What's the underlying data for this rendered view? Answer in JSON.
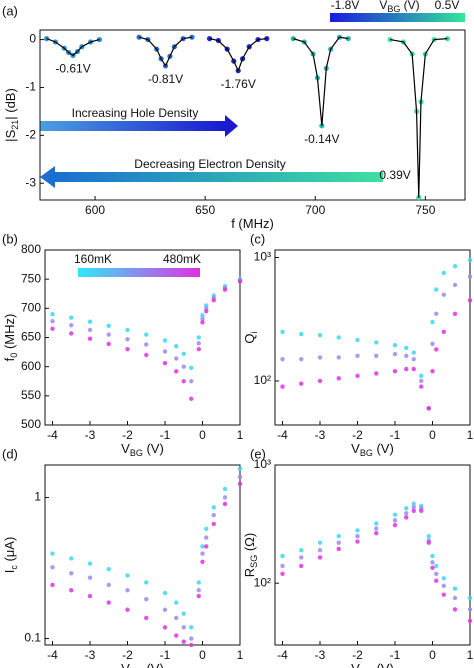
{
  "chart_data": [
    {
      "type": "line",
      "panel": "(a)",
      "xlabel": [
        "f (MHz)"
      ],
      "ylabel": [
        "|S",
        "21",
        "| (dB)"
      ],
      "xlim": [
        575,
        768
      ],
      "xticks": [
        600,
        650,
        700,
        750
      ],
      "ylim": [
        -3.35,
        0.2
      ],
      "yticks": [
        -3,
        -2,
        -1,
        0
      ],
      "fit_color": "#000000",
      "series": [
        {
          "name": "-0.61V",
          "color": "#2f8fd0",
          "x": [
            578,
            582,
            586,
            588,
            590,
            592,
            594,
            598,
            602
          ],
          "values": [
            0.02,
            -0.05,
            -0.18,
            -0.27,
            -0.33,
            -0.25,
            -0.15,
            -0.05,
            0.0
          ]
        },
        {
          "name": "-0.81V",
          "color": "#2a6fd0",
          "x": [
            620,
            624,
            628,
            630,
            632,
            634,
            636,
            640,
            644
          ],
          "values": [
            0.05,
            0.0,
            -0.2,
            -0.4,
            -0.55,
            -0.35,
            -0.15,
            0.02,
            0.05
          ]
        },
        {
          "name": "-1.76V",
          "color": "#1a2ad0",
          "x": [
            652,
            656,
            660,
            663,
            665,
            667,
            670,
            674,
            678
          ],
          "values": [
            0.02,
            -0.02,
            -0.2,
            -0.45,
            -0.65,
            -0.4,
            -0.15,
            0.0,
            0.02
          ]
        },
        {
          "name": "-0.14V",
          "color": "#2ab8a8",
          "x": [
            690,
            695,
            699,
            701,
            703,
            705,
            707,
            711,
            715
          ],
          "values": [
            0.02,
            -0.05,
            -0.3,
            -0.8,
            -1.8,
            -0.6,
            -0.2,
            0.05,
            0.02
          ]
        },
        {
          "name": "0.39V",
          "color": "#3ee0a0",
          "x": [
            734,
            740,
            744,
            746,
            747,
            748,
            750,
            754,
            760
          ],
          "values": [
            0.0,
            -0.05,
            -0.3,
            -1.5,
            -3.3,
            -1.3,
            -0.3,
            0.0,
            0.02
          ]
        }
      ],
      "annotations": [
        "Increasing Hole Density",
        "Decreasing Electron Density"
      ],
      "colorbar": {
        "colors": [
          "#1a1adf",
          "#33e699"
        ],
        "labels": [
          "-1.8V",
          "0.5V"
        ],
        "title": [
          "V",
          "BG",
          " (V)"
        ]
      }
    },
    {
      "type": "scatter",
      "panel": "(b)",
      "xlabel": [
        "V",
        "BG",
        " (V)"
      ],
      "ylabel": [
        "f",
        "0",
        " (MHz)"
      ],
      "xlim": [
        -4.2,
        1
      ],
      "xticks": [
        -4,
        -3,
        -2,
        -1,
        0,
        1
      ],
      "ylim": [
        500,
        800
      ],
      "yticks": [
        500,
        550,
        600,
        650,
        700,
        750,
        800
      ],
      "x": [
        -4,
        -3.5,
        -3,
        -2.5,
        -2,
        -1.5,
        -1,
        -0.7,
        -0.5,
        -0.3,
        -0.1,
        0,
        0.1,
        0.3,
        0.6,
        1
      ],
      "series": [
        {
          "color": "#3ad8f0",
          "values": [
            690,
            684,
            677,
            670,
            663,
            655,
            645,
            635,
            622,
            598,
            650,
            688,
            705,
            722,
            738,
            750
          ]
        },
        {
          "color": "#9a8af0",
          "values": [
            678,
            671,
            663,
            655,
            647,
            638,
            626,
            614,
            600,
            575,
            640,
            682,
            700,
            718,
            735,
            748
          ]
        },
        {
          "color": "#e030e0",
          "values": [
            665,
            657,
            648,
            639,
            630,
            620,
            606,
            592,
            575,
            545,
            630,
            676,
            695,
            714,
            732,
            746
          ]
        }
      ],
      "colorbar": {
        "colors": [
          "#30e8f8",
          "#e030e0"
        ],
        "labels": [
          "160mK",
          "480mK"
        ]
      }
    },
    {
      "type": "scatter",
      "panel": "(c)",
      "xlabel": [
        "V",
        "BG",
        " (V)"
      ],
      "ylabel": [
        "Q",
        "i"
      ],
      "log": true,
      "xlim": [
        -4.2,
        1
      ],
      "xticks": [
        -4,
        -3,
        -2,
        -1,
        0,
        1
      ],
      "ylim": [
        44,
        1150
      ],
      "yticks": [
        {
          "value": 100,
          "label": "10²"
        },
        {
          "value": 1000,
          "label": "10³"
        }
      ],
      "x": [
        -4,
        -3.5,
        -3,
        -2.5,
        -2,
        -1.5,
        -1,
        -0.7,
        -0.5,
        -0.3,
        -0.1,
        0,
        0.1,
        0.3,
        0.6,
        1
      ],
      "series": [
        {
          "color": "#3ad8f0",
          "values": [
            250,
            240,
            235,
            225,
            215,
            205,
            195,
            185,
            170,
            110,
            60,
            300,
            550,
            750,
            850,
            950
          ]
        },
        {
          "color": "#9a8af0",
          "values": [
            150,
            150,
            155,
            155,
            160,
            160,
            165,
            160,
            150,
            100,
            60,
            200,
            350,
            500,
            600,
            700
          ]
        },
        {
          "color": "#e030e0",
          "values": [
            90,
            95,
            100,
            105,
            110,
            115,
            120,
            125,
            125,
            90,
            60,
            120,
            180,
            250,
            350,
            450
          ]
        }
      ]
    },
    {
      "type": "scatter",
      "panel": "(d)",
      "xlabel": [
        "V",
        "BG",
        " (V)"
      ],
      "ylabel": [
        "I",
        "c",
        " (μA)"
      ],
      "log": true,
      "xlim": [
        -4.2,
        1
      ],
      "xticks": [
        -4,
        -3,
        -2,
        -1,
        0,
        1
      ],
      "ylim": [
        0.09,
        1.7
      ],
      "yticks": [
        0.1,
        1
      ],
      "x": [
        -4,
        -3.5,
        -3,
        -2.5,
        -2,
        -1.5,
        -1,
        -0.7,
        -0.5,
        -0.3,
        -0.1,
        0,
        0.1,
        0.3,
        0.6,
        1
      ],
      "series": [
        {
          "color": "#3ad8f0",
          "values": [
            0.4,
            0.37,
            0.34,
            0.31,
            0.28,
            0.25,
            0.21,
            0.18,
            0.15,
            0.12,
            0.25,
            0.45,
            0.6,
            0.85,
            1.15,
            1.6
          ]
        },
        {
          "color": "#9a8af0",
          "values": [
            0.32,
            0.29,
            0.27,
            0.24,
            0.22,
            0.19,
            0.16,
            0.14,
            0.12,
            0.1,
            0.22,
            0.4,
            0.52,
            0.75,
            1.0,
            1.4
          ]
        },
        {
          "color": "#e030e0",
          "values": [
            0.24,
            0.22,
            0.2,
            0.18,
            0.16,
            0.14,
            0.12,
            0.105,
            0.095,
            0.09,
            0.2,
            0.35,
            0.45,
            0.65,
            0.9,
            1.25
          ]
        }
      ]
    },
    {
      "type": "scatter",
      "panel": "(e)",
      "xlabel": [
        "V",
        "BG",
        " (V)"
      ],
      "ylabel": [
        "R",
        "SG",
        " (Ω)"
      ],
      "log": true,
      "xlim": [
        -4.2,
        1
      ],
      "xticks": [
        -4,
        -3,
        -2,
        -1,
        0,
        1
      ],
      "ylim": [
        30,
        1000
      ],
      "yticks": [
        {
          "value": 100,
          "label": "10²"
        },
        {
          "value": 1000,
          "label": "10³"
        }
      ],
      "x": [
        -4,
        -3.5,
        -3,
        -2.5,
        -2,
        -1.5,
        -1,
        -0.7,
        -0.5,
        -0.3,
        -0.1,
        0,
        0.1,
        0.3,
        0.6,
        1
      ],
      "series": [
        {
          "color": "#3ad8f0",
          "values": [
            170,
            190,
            220,
            250,
            280,
            320,
            380,
            430,
            470,
            450,
            250,
            170,
            140,
            110,
            90,
            75
          ]
        },
        {
          "color": "#9a8af0",
          "values": [
            140,
            165,
            190,
            220,
            250,
            290,
            340,
            390,
            440,
            430,
            230,
            150,
            120,
            95,
            75,
            60
          ]
        },
        {
          "color": "#e030e0",
          "values": [
            120,
            140,
            165,
            195,
            225,
            265,
            310,
            360,
            410,
            410,
            220,
            135,
            105,
            80,
            60,
            48
          ]
        }
      ]
    }
  ]
}
